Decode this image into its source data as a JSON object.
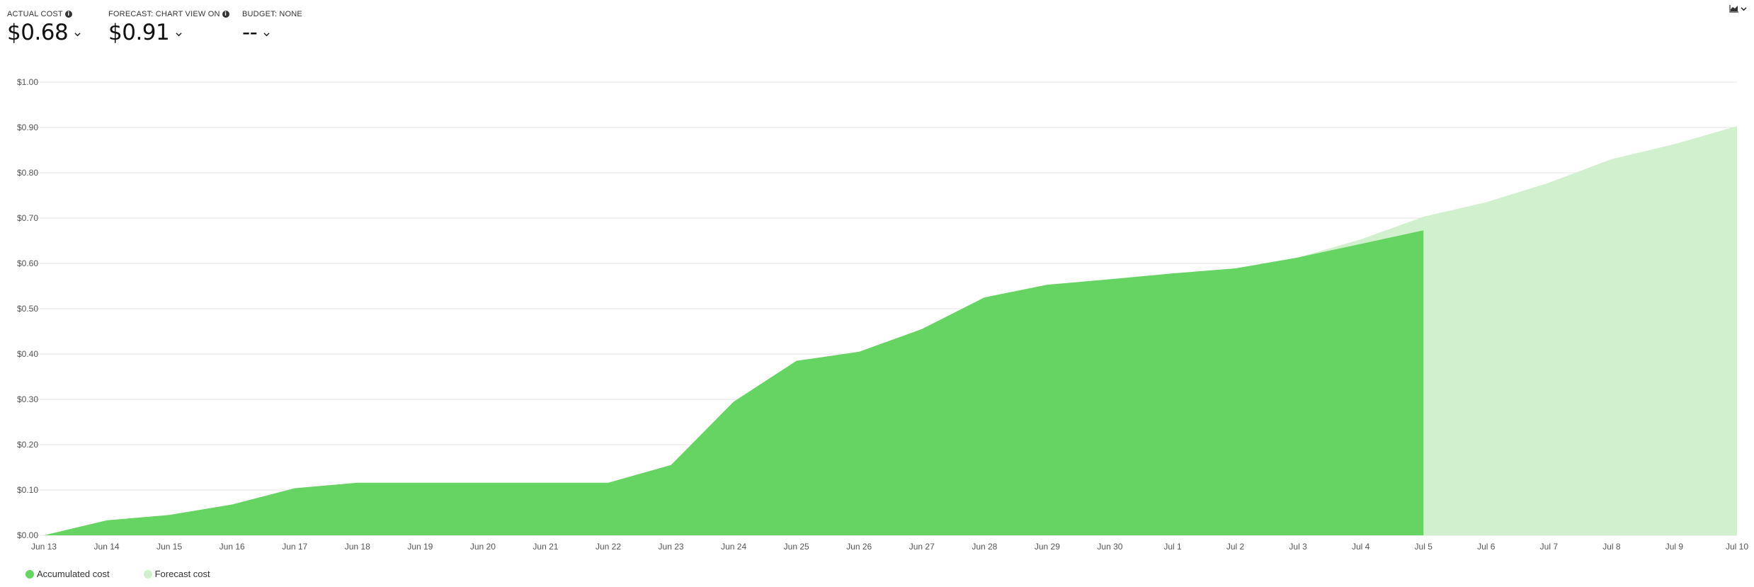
{
  "kpis": {
    "actual": {
      "label": "ACTUAL COST",
      "value": "$0.68"
    },
    "forecast": {
      "label": "FORECAST: CHART VIEW ON",
      "value": "$0.91"
    },
    "budget": {
      "label": "BUDGET: NONE",
      "value": "--"
    }
  },
  "toolbar": {
    "chart_type_icon": "area-chart-icon"
  },
  "colors": {
    "accumulated": "#66d462",
    "forecast": "#d1f0cd",
    "grid": "#e6e6e6",
    "axis_text": "#555555"
  },
  "chart_data": {
    "type": "area",
    "title": "",
    "xlabel": "",
    "ylabel": "",
    "ylim": [
      0,
      1.0
    ],
    "y_ticks": [
      {
        "value": 0.0,
        "label": "$0.00"
      },
      {
        "value": 0.1,
        "label": "$0.10"
      },
      {
        "value": 0.2,
        "label": "$0.20"
      },
      {
        "value": 0.3,
        "label": "$0.30"
      },
      {
        "value": 0.4,
        "label": "$0.40"
      },
      {
        "value": 0.5,
        "label": "$0.50"
      },
      {
        "value": 0.6,
        "label": "$0.60"
      },
      {
        "value": 0.7,
        "label": "$0.70"
      },
      {
        "value": 0.8,
        "label": "$0.80"
      },
      {
        "value": 0.9,
        "label": "$0.90"
      },
      {
        "value": 1.0,
        "label": "$1.00"
      }
    ],
    "categories": [
      "Jun 13",
      "Jun 14",
      "Jun 15",
      "Jun 16",
      "Jun 17",
      "Jun 18",
      "Jun 19",
      "Jun 20",
      "Jun 21",
      "Jun 22",
      "Jun 23",
      "Jun 24",
      "Jun 25",
      "Jun 26",
      "Jun 27",
      "Jun 28",
      "Jun 29",
      "Jun 30",
      "Jul 1",
      "Jul 2",
      "Jul 3",
      "Jul 4",
      "Jul 5",
      "Jul 6",
      "Jul 7",
      "Jul 8",
      "Jul 9",
      "Jul 10"
    ],
    "series": [
      {
        "name": "Accumulated cost",
        "values": [
          0.0,
          0.033,
          0.045,
          0.068,
          0.104,
          0.116,
          0.116,
          0.116,
          0.116,
          0.116,
          0.155,
          0.295,
          0.385,
          0.405,
          0.455,
          0.525,
          0.553,
          0.565,
          0.578,
          0.589,
          0.613,
          0.643,
          0.673,
          null,
          null,
          null,
          null,
          null
        ]
      },
      {
        "name": "Forecast cost",
        "values": [
          null,
          null,
          null,
          null,
          null,
          null,
          null,
          null,
          null,
          null,
          null,
          null,
          null,
          null,
          null,
          null,
          null,
          null,
          null,
          null,
          0.613,
          0.653,
          0.703,
          0.735,
          0.778,
          0.83,
          0.863,
          0.903
        ]
      }
    ],
    "legend_position": "bottom-left",
    "grid": true
  }
}
